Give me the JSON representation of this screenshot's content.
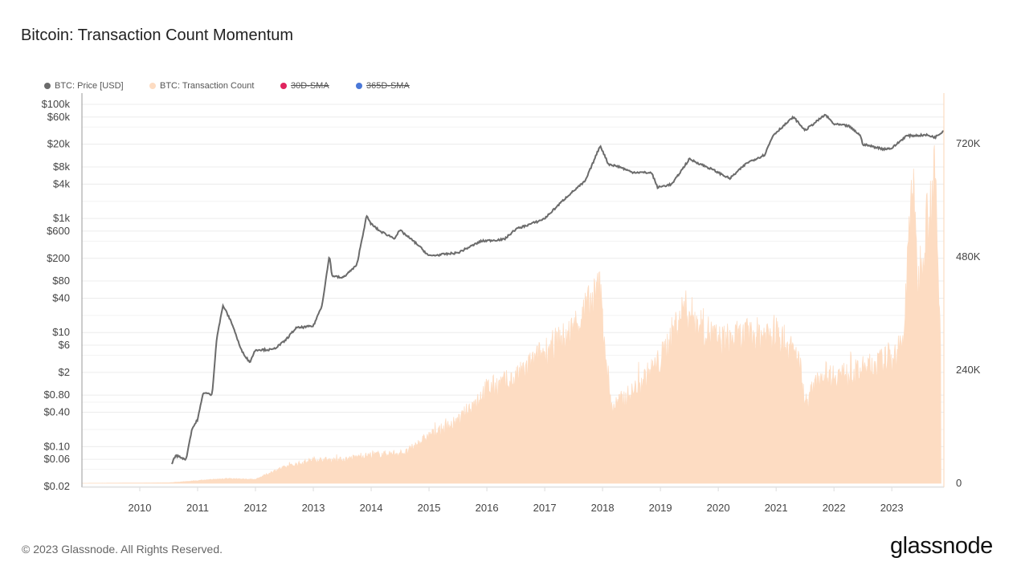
{
  "title": "Bitcoin: Transaction Count Momentum",
  "footer": "© 2023 Glassnode. All Rights Reserved.",
  "logo": "glassnode",
  "legend": [
    {
      "label": "BTC: Price [USD]",
      "color": "#6b6b6b",
      "hidden": false
    },
    {
      "label": "BTC: Transaction Count",
      "color": "#fddcc2",
      "hidden": false
    },
    {
      "label": "30D-SMA",
      "color": "#e0245e",
      "hidden": true
    },
    {
      "label": "365D-SMA",
      "color": "#4a78d8",
      "hidden": true
    }
  ],
  "chart_data": {
    "type": "line",
    "title": "Bitcoin: Transaction Count Momentum",
    "x_ticks": [
      "2010",
      "2011",
      "2012",
      "2013",
      "2014",
      "2015",
      "2016",
      "2017",
      "2018",
      "2019",
      "2020",
      "2021",
      "2022",
      "2023"
    ],
    "xlim": [
      2009.0,
      2023.9
    ],
    "y_left": {
      "scale": "log",
      "range": [
        0.02,
        100000
      ],
      "ticks": [
        "$100k",
        "$60k",
        "$20k",
        "$8k",
        "$4k",
        "$1k",
        "$600",
        "$200",
        "$80",
        "$40",
        "$10",
        "$6",
        "$2",
        "$0.80",
        "$0.40",
        "$0.10",
        "$0.06",
        "$0.02"
      ],
      "tick_values": [
        100000,
        60000,
        20000,
        8000,
        4000,
        1000,
        600,
        200,
        80,
        40,
        10,
        6,
        2,
        0.8,
        0.4,
        0.1,
        0.06,
        0.02
      ]
    },
    "y_right": {
      "scale": "linear",
      "range": [
        0,
        840000
      ],
      "ticks": [
        "720K",
        "480K",
        "240K",
        "0"
      ],
      "tick_values": [
        720000,
        480000,
        240000,
        0
      ]
    },
    "grid": true,
    "legend_position": "top-left",
    "series": [
      {
        "name": "BTC: Price [USD]",
        "axis": "left",
        "color": "#6b6b6b",
        "points": [
          [
            2010.55,
            0.05
          ],
          [
            2010.62,
            0.07
          ],
          [
            2010.8,
            0.06
          ],
          [
            2010.9,
            0.2
          ],
          [
            2011.0,
            0.3
          ],
          [
            2011.1,
            0.9
          ],
          [
            2011.25,
            0.8
          ],
          [
            2011.33,
            8
          ],
          [
            2011.44,
            30
          ],
          [
            2011.6,
            14
          ],
          [
            2011.75,
            5
          ],
          [
            2011.9,
            3
          ],
          [
            2012.0,
            5
          ],
          [
            2012.3,
            5
          ],
          [
            2012.5,
            7
          ],
          [
            2012.7,
            12
          ],
          [
            2013.0,
            13
          ],
          [
            2013.15,
            30
          ],
          [
            2013.28,
            230
          ],
          [
            2013.32,
            100
          ],
          [
            2013.5,
            90
          ],
          [
            2013.75,
            150
          ],
          [
            2013.92,
            1100
          ],
          [
            2014.0,
            800
          ],
          [
            2014.15,
            600
          ],
          [
            2014.4,
            450
          ],
          [
            2014.5,
            620
          ],
          [
            2014.8,
            350
          ],
          [
            2015.0,
            220
          ],
          [
            2015.5,
            250
          ],
          [
            2015.9,
            400
          ],
          [
            2016.3,
            430
          ],
          [
            2016.5,
            650
          ],
          [
            2016.9,
            900
          ],
          [
            2017.0,
            1000
          ],
          [
            2017.4,
            2500
          ],
          [
            2017.7,
            4500
          ],
          [
            2017.96,
            19000
          ],
          [
            2018.1,
            9000
          ],
          [
            2018.3,
            8000
          ],
          [
            2018.5,
            6500
          ],
          [
            2018.85,
            6300
          ],
          [
            2018.95,
            3500
          ],
          [
            2019.2,
            4000
          ],
          [
            2019.5,
            11000
          ],
          [
            2019.9,
            7200
          ],
          [
            2020.2,
            5000
          ],
          [
            2020.5,
            9500
          ],
          [
            2020.8,
            13000
          ],
          [
            2020.95,
            29000
          ],
          [
            2021.3,
            60000
          ],
          [
            2021.5,
            35000
          ],
          [
            2021.85,
            66000
          ],
          [
            2022.0,
            45000
          ],
          [
            2022.25,
            42000
          ],
          [
            2022.45,
            29000
          ],
          [
            2022.5,
            20000
          ],
          [
            2022.85,
            16500
          ],
          [
            2023.0,
            17000
          ],
          [
            2023.25,
            28000
          ],
          [
            2023.6,
            29000
          ],
          [
            2023.75,
            26500
          ],
          [
            2023.9,
            35000
          ]
        ]
      },
      {
        "name": "BTC: Transaction Count",
        "axis": "right",
        "color": "#fddcc2",
        "points": [
          [
            2009.0,
            0
          ],
          [
            2010.5,
            1000
          ],
          [
            2011.5,
            10000
          ],
          [
            2012.0,
            8000
          ],
          [
            2012.4,
            30000
          ],
          [
            2013.0,
            50000
          ],
          [
            2013.5,
            50000
          ],
          [
            2014.0,
            60000
          ],
          [
            2014.6,
            65000
          ],
          [
            2015.0,
            100000
          ],
          [
            2015.5,
            130000
          ],
          [
            2016.0,
            200000
          ],
          [
            2016.5,
            220000
          ],
          [
            2017.0,
            280000
          ],
          [
            2017.4,
            310000
          ],
          [
            2017.95,
            410000
          ],
          [
            2018.15,
            160000
          ],
          [
            2018.5,
            190000
          ],
          [
            2019.0,
            260000
          ],
          [
            2019.4,
            370000
          ],
          [
            2020.0,
            300000
          ],
          [
            2020.5,
            310000
          ],
          [
            2021.0,
            320000
          ],
          [
            2021.4,
            260000
          ],
          [
            2021.5,
            170000
          ],
          [
            2021.8,
            230000
          ],
          [
            2022.3,
            230000
          ],
          [
            2022.9,
            260000
          ],
          [
            2023.2,
            290000
          ],
          [
            2023.35,
            660000
          ],
          [
            2023.45,
            420000
          ],
          [
            2023.6,
            560000
          ],
          [
            2023.75,
            650000
          ],
          [
            2023.85,
            260000
          ]
        ]
      }
    ]
  }
}
